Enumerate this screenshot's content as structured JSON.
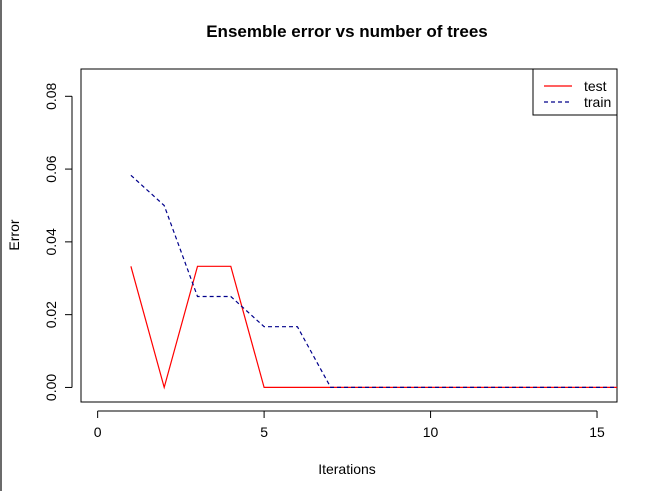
{
  "chart_data": {
    "type": "line",
    "title": "Ensemble error vs number of trees",
    "xlabel": "Iterations",
    "ylabel": "Error",
    "xlim": [
      -0.5,
      15.6
    ],
    "ylim": [
      -0.004,
      0.0875
    ],
    "xticks": [
      0,
      5,
      10,
      15
    ],
    "yticks": [
      0.0,
      0.02,
      0.04,
      0.06,
      0.08
    ],
    "xtick_labels": [
      "0",
      "5",
      "10",
      "15"
    ],
    "ytick_labels": [
      "0.00",
      "0.02",
      "0.04",
      "0.06",
      "0.08"
    ],
    "grid": false,
    "legend_position": "top-right",
    "series": [
      {
        "name": "test",
        "color": "#ff0000",
        "linestyle": "solid",
        "x": [
          1,
          2,
          3,
          4,
          5,
          6,
          7,
          8,
          9,
          10,
          11,
          12,
          13,
          14,
          15,
          16
        ],
        "y": [
          0.0333,
          0.0,
          0.0333,
          0.0333,
          0.0,
          0.0,
          0.0,
          0.0,
          0.0,
          0.0,
          0.0,
          0.0,
          0.0,
          0.0,
          0.0,
          0.0
        ]
      },
      {
        "name": "train",
        "color": "#00008b",
        "linestyle": "dashed",
        "x": [
          1,
          2,
          3,
          4,
          5,
          6,
          7,
          8,
          9,
          10,
          11,
          12,
          13,
          14,
          15,
          16
        ],
        "y": [
          0.0583,
          0.05,
          0.025,
          0.025,
          0.0167,
          0.0167,
          0.0,
          0.0,
          0.0,
          0.0,
          0.0,
          0.0,
          0.0,
          0.0,
          0.0,
          0.0
        ]
      }
    ]
  }
}
